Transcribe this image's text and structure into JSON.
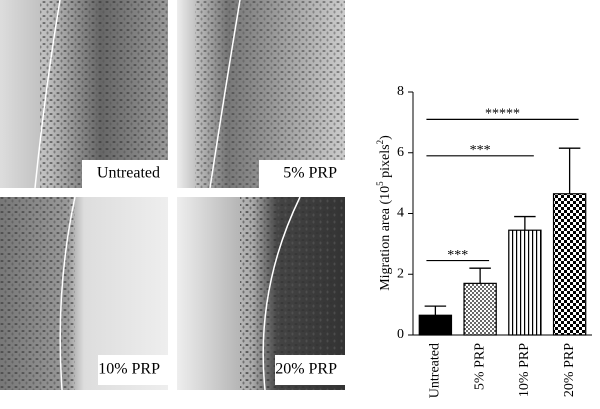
{
  "chart_data": {
    "type": "bar",
    "ylabel": [
      "Migration area (10",
      "5",
      " pixels",
      "2",
      ")"
    ],
    "categories": [
      "Untreated",
      "5% PRP",
      "10% PRP",
      "20% PRP"
    ],
    "values": [
      0.65,
      1.7,
      3.45,
      4.65
    ],
    "errors": [
      0.3,
      0.5,
      0.45,
      1.5
    ],
    "patterns": [
      "solid",
      "dots",
      "vlines",
      "checker"
    ],
    "color": "#000000",
    "ylim": [
      0,
      8
    ],
    "yticks": [
      0,
      2,
      4,
      6,
      8
    ],
    "annotations": [
      {
        "text": "***",
        "from": 0,
        "to": 1,
        "y": 2.45
      },
      {
        "text": "***",
        "from": 0,
        "to": 2,
        "y": 5.9
      },
      {
        "text": "*****",
        "from": 0,
        "to": 3,
        "y": 7.1
      }
    ]
  }
}
